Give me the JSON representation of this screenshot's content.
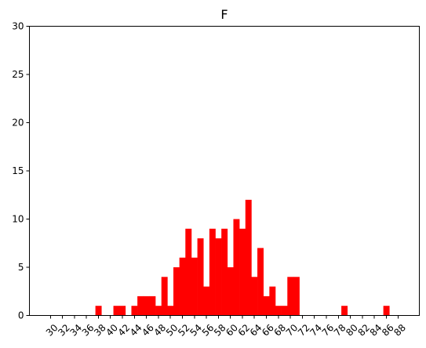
{
  "chart_data": {
    "type": "bar",
    "title": "F",
    "xlabel": "",
    "ylabel": "",
    "bar_color": "#ff0000",
    "bin_width": 1,
    "xlim": [
      26.5,
      91.5
    ],
    "ylim": [
      0,
      30
    ],
    "grid": false,
    "x_ticks": [
      30,
      32,
      34,
      36,
      38,
      40,
      42,
      44,
      46,
      48,
      50,
      52,
      54,
      56,
      58,
      60,
      62,
      64,
      66,
      68,
      70,
      72,
      74,
      76,
      78,
      80,
      82,
      84,
      86,
      88
    ],
    "y_ticks": [
      0,
      5,
      10,
      15,
      20,
      25,
      30
    ],
    "bins": [
      {
        "x": 38,
        "count": 1
      },
      {
        "x": 41,
        "count": 1
      },
      {
        "x": 42,
        "count": 1
      },
      {
        "x": 44,
        "count": 1
      },
      {
        "x": 45,
        "count": 2
      },
      {
        "x": 46,
        "count": 2
      },
      {
        "x": 47,
        "count": 2
      },
      {
        "x": 48,
        "count": 1
      },
      {
        "x": 49,
        "count": 4
      },
      {
        "x": 50,
        "count": 1
      },
      {
        "x": 51,
        "count": 5
      },
      {
        "x": 52,
        "count": 6
      },
      {
        "x": 53,
        "count": 9
      },
      {
        "x": 54,
        "count": 6
      },
      {
        "x": 55,
        "count": 8
      },
      {
        "x": 56,
        "count": 3
      },
      {
        "x": 57,
        "count": 9
      },
      {
        "x": 58,
        "count": 8
      },
      {
        "x": 59,
        "count": 9
      },
      {
        "x": 60,
        "count": 5
      },
      {
        "x": 61,
        "count": 10
      },
      {
        "x": 62,
        "count": 9
      },
      {
        "x": 63,
        "count": 12
      },
      {
        "x": 64,
        "count": 4
      },
      {
        "x": 65,
        "count": 7
      },
      {
        "x": 66,
        "count": 2
      },
      {
        "x": 67,
        "count": 3
      },
      {
        "x": 68,
        "count": 1
      },
      {
        "x": 69,
        "count": 1
      },
      {
        "x": 70,
        "count": 4
      },
      {
        "x": 71,
        "count": 4
      },
      {
        "x": 79,
        "count": 1
      },
      {
        "x": 86,
        "count": 1
      }
    ]
  }
}
